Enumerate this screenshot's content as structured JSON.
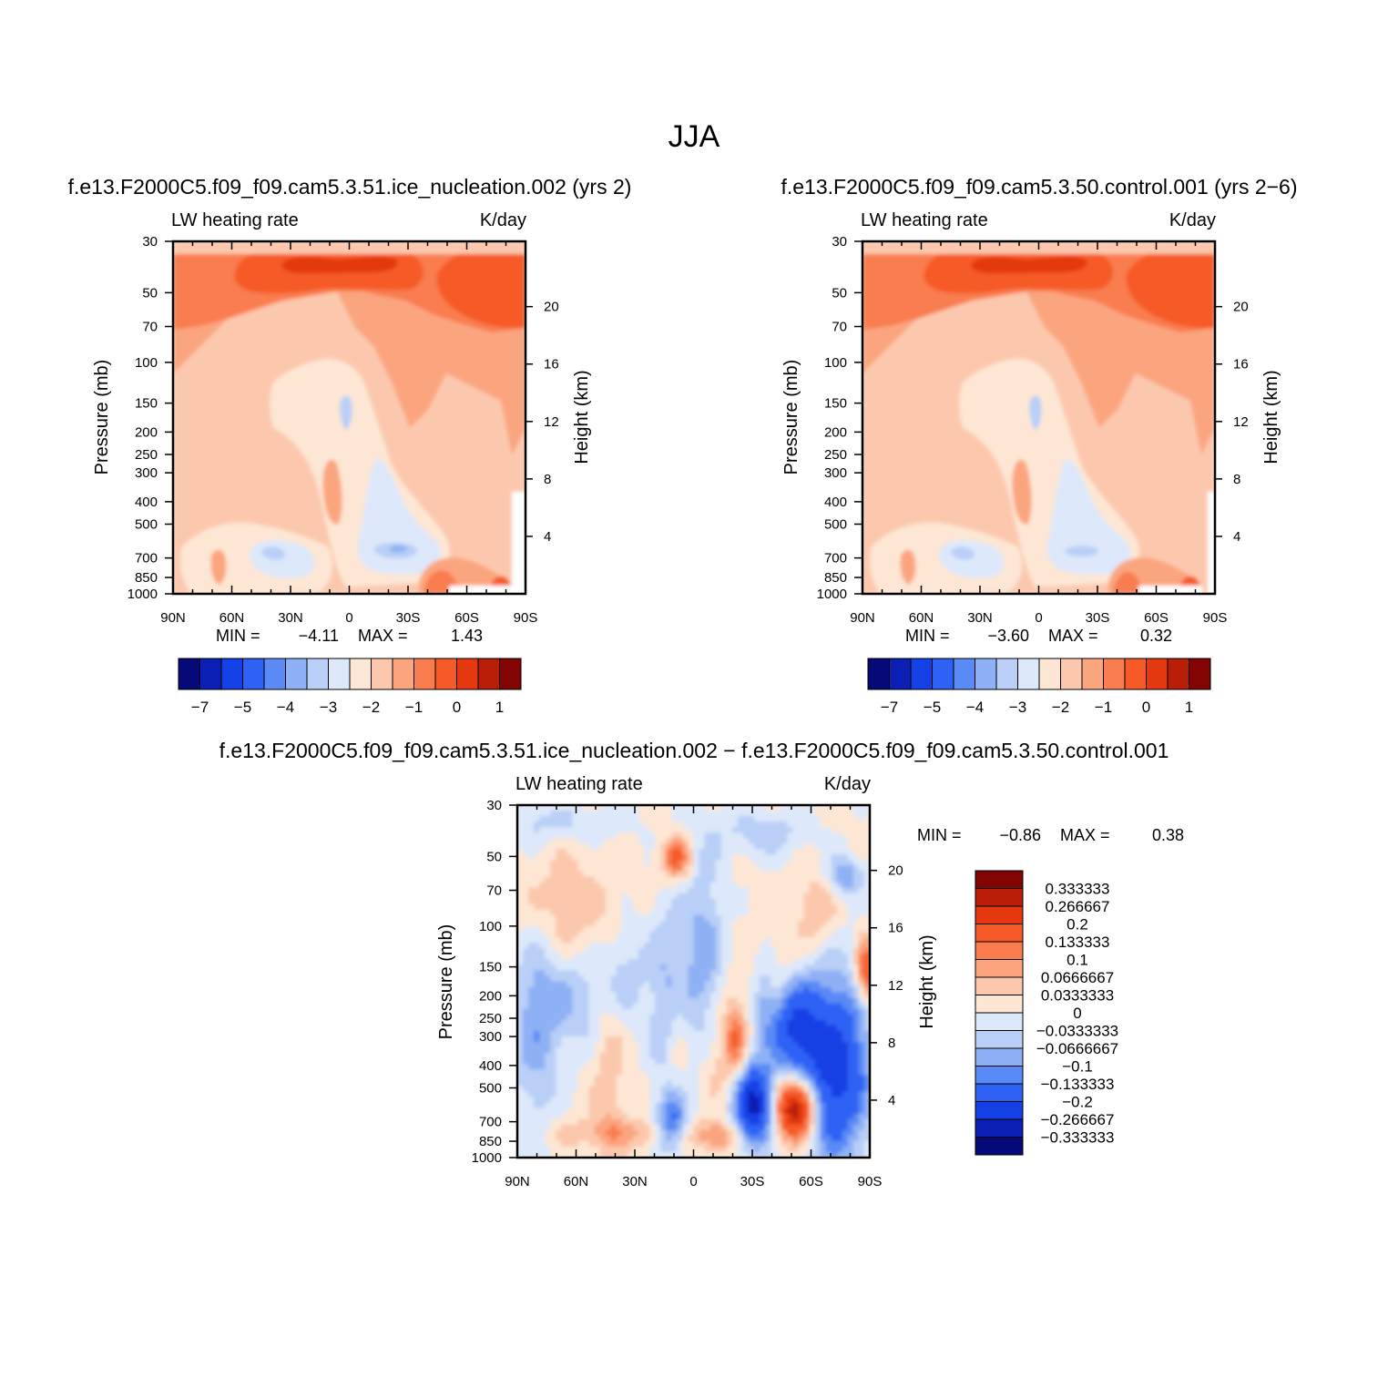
{
  "title": "JJA",
  "chart_data": [
    {
      "type": "heatmap",
      "panel_title": "f.e13.F2000C5.f09_f09.cam5.3.51.ice_nucleation.002  (yrs  2)",
      "left_label": "LW  heating  rate",
      "right_label": "K/day",
      "ylabel": "Pressure  (mb)",
      "ylabel_right": "Height  (km)",
      "x_ticks": [
        "90N",
        "60N",
        "30N",
        "0",
        "30S",
        "60S",
        "90S"
      ],
      "pressure_ticks": [
        "30",
        "50",
        "70",
        "100",
        "150",
        "200",
        "250",
        "300",
        "400",
        "500",
        "700",
        "850",
        "1000"
      ],
      "height_ticks": [
        "20",
        "16",
        "12",
        "8",
        "4"
      ],
      "min_label": "MIN  =",
      "min_value": "−4.11",
      "max_label": "MAX  =",
      "max_value": "1.43",
      "colorbar_labels": [
        "−7",
        "−5",
        "−4",
        "−3",
        "−2",
        "−1",
        "0",
        "1"
      ],
      "colorbar_colors": [
        "#050a78",
        "#0a1fb4",
        "#1441e6",
        "#2d62f5",
        "#5a8af5",
        "#8eb0f5",
        "#b9cff7",
        "#dde8fa",
        "#fde6d4",
        "#fcc8ad",
        "#fba57f",
        "#f97d4f",
        "#f65a28",
        "#e4380f",
        "#b81e08",
        "#820503"
      ]
    },
    {
      "type": "heatmap",
      "panel_title": "f.e13.F2000C5.f09_f09.cam5.3.50.control.001  (yrs  2−6)",
      "left_label": "LW  heating  rate",
      "right_label": "K/day",
      "ylabel": "Pressure  (mb)",
      "ylabel_right": "Height  (km)",
      "x_ticks": [
        "90N",
        "60N",
        "30N",
        "0",
        "30S",
        "60S",
        "90S"
      ],
      "pressure_ticks": [
        "30",
        "50",
        "70",
        "100",
        "150",
        "200",
        "250",
        "300",
        "400",
        "500",
        "700",
        "850",
        "1000"
      ],
      "height_ticks": [
        "20",
        "16",
        "12",
        "8",
        "4"
      ],
      "min_label": "MIN  =",
      "min_value": "−3.60",
      "max_label": "MAX  =",
      "max_value": "0.32",
      "colorbar_labels": [
        "−7",
        "−5",
        "−4",
        "−3",
        "−2",
        "−1",
        "0",
        "1"
      ],
      "colorbar_colors": [
        "#050a78",
        "#0a1fb4",
        "#1441e6",
        "#2d62f5",
        "#5a8af5",
        "#8eb0f5",
        "#b9cff7",
        "#dde8fa",
        "#fde6d4",
        "#fcc8ad",
        "#fba57f",
        "#f97d4f",
        "#f65a28",
        "#e4380f",
        "#b81e08",
        "#820503"
      ]
    },
    {
      "type": "heatmap",
      "panel_title": "f.e13.F2000C5.f09_f09.cam5.3.51.ice_nucleation.002  −  f.e13.F2000C5.f09_f09.cam5.3.50.control.001",
      "left_label": "LW  heating  rate",
      "right_label": "K/day",
      "ylabel": "Pressure  (mb)",
      "ylabel_right": "Height  (km)",
      "x_ticks": [
        "90N",
        "60N",
        "30N",
        "0",
        "30S",
        "60S",
        "90S"
      ],
      "pressure_ticks": [
        "30",
        "50",
        "70",
        "100",
        "150",
        "200",
        "250",
        "300",
        "400",
        "500",
        "700",
        "850",
        "1000"
      ],
      "height_ticks": [
        "20",
        "16",
        "12",
        "8",
        "4"
      ],
      "min_label": "MIN  =",
      "min_value": "−0.86",
      "max_label": "MAX  =",
      "max_value": "0.38",
      "colorbar_labels": [
        "0.333333",
        "0.266667",
        "0.2",
        "0.133333",
        "0.1",
        "0.0666667",
        "0.0333333",
        "0",
        "−0.0333333",
        "−0.0666667",
        "−0.1",
        "−0.133333",
        "−0.2",
        "−0.266667",
        "−0.333333"
      ],
      "colorbar_colors": [
        "#820503",
        "#b81e08",
        "#e4380f",
        "#f65a28",
        "#f97d4f",
        "#fba57f",
        "#fcc8ad",
        "#fde6d4",
        "#dde8fa",
        "#b9cff7",
        "#8eb0f5",
        "#5a8af5",
        "#2d62f5",
        "#1441e6",
        "#0a1fb4",
        "#050a78"
      ]
    }
  ]
}
